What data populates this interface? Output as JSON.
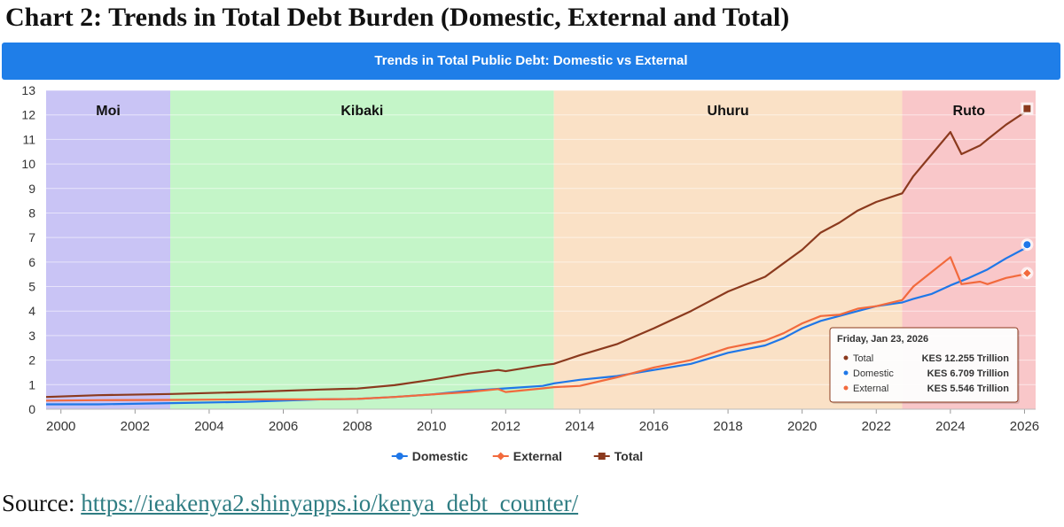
{
  "doc_title": "Chart 2: Trends in Total Debt Burden (Domestic, External and Total)",
  "source": {
    "prefix": "Source: ",
    "link_text": "https://ieakenya2.shinyapps.io/kenya_debt_counter/"
  },
  "chart_data": {
    "type": "line",
    "title": "Trends in Total Public Debt: Domestic vs External",
    "xlim": [
      1999.6,
      2026.3
    ],
    "ylim": [
      0,
      13
    ],
    "x_ticks": [
      "2000",
      "2002",
      "2004",
      "2006",
      "2008",
      "2010",
      "2012",
      "2014",
      "2016",
      "2018",
      "2020",
      "2022",
      "2024",
      "2026"
    ],
    "y_ticks": [
      "0",
      "1",
      "2",
      "3",
      "4",
      "5",
      "6",
      "7",
      "8",
      "9",
      "10",
      "11",
      "12",
      "13"
    ],
    "grid": true,
    "legend_position": "bottom-center",
    "bands": [
      {
        "label": "Moi",
        "from": 1999.6,
        "to": 2002.95,
        "color": "#c9c4f5"
      },
      {
        "label": "Kibaki",
        "from": 2002.95,
        "to": 2013.3,
        "color": "#c4f5c8"
      },
      {
        "label": "Uhuru",
        "from": 2013.3,
        "to": 2022.7,
        "color": "#fae1c6"
      },
      {
        "label": "Ruto",
        "from": 2022.7,
        "to": 2026.3,
        "color": "#f9c7c9"
      }
    ],
    "series": [
      {
        "name": "Domestic",
        "color": "#1f77e8",
        "marker": "circle",
        "points": [
          [
            1999.6,
            0.2
          ],
          [
            2001,
            0.2
          ],
          [
            2003,
            0.25
          ],
          [
            2005,
            0.3
          ],
          [
            2007,
            0.4
          ],
          [
            2008,
            0.42
          ],
          [
            2009,
            0.5
          ],
          [
            2010,
            0.6
          ],
          [
            2011,
            0.75
          ],
          [
            2012,
            0.85
          ],
          [
            2013,
            0.95
          ],
          [
            2013.3,
            1.05
          ],
          [
            2014,
            1.2
          ],
          [
            2015,
            1.35
          ],
          [
            2016,
            1.6
          ],
          [
            2017,
            1.85
          ],
          [
            2018,
            2.3
          ],
          [
            2019,
            2.6
          ],
          [
            2019.5,
            2.9
          ],
          [
            2020,
            3.3
          ],
          [
            2020.5,
            3.6
          ],
          [
            2021,
            3.8
          ],
          [
            2021.5,
            4.0
          ],
          [
            2022,
            4.2
          ],
          [
            2022.7,
            4.35
          ],
          [
            2023,
            4.5
          ],
          [
            2023.5,
            4.7
          ],
          [
            2024,
            5.05
          ],
          [
            2024.5,
            5.35
          ],
          [
            2025,
            5.7
          ],
          [
            2025.5,
            6.15
          ],
          [
            2026,
            6.55
          ],
          [
            2026.07,
            6.709
          ]
        ]
      },
      {
        "name": "External",
        "color": "#f26a3d",
        "marker": "diamond",
        "points": [
          [
            1999.6,
            0.35
          ],
          [
            2001,
            0.37
          ],
          [
            2003,
            0.38
          ],
          [
            2005,
            0.4
          ],
          [
            2007,
            0.4
          ],
          [
            2008,
            0.42
          ],
          [
            2009,
            0.5
          ],
          [
            2010,
            0.6
          ],
          [
            2011,
            0.7
          ],
          [
            2011.8,
            0.82
          ],
          [
            2012,
            0.7
          ],
          [
            2013,
            0.85
          ],
          [
            2013.3,
            0.9
          ],
          [
            2014,
            0.95
          ],
          [
            2015,
            1.3
          ],
          [
            2016,
            1.7
          ],
          [
            2017,
            2.0
          ],
          [
            2018,
            2.5
          ],
          [
            2019,
            2.8
          ],
          [
            2019.5,
            3.1
          ],
          [
            2020,
            3.5
          ],
          [
            2020.5,
            3.8
          ],
          [
            2021,
            3.85
          ],
          [
            2021.5,
            4.1
          ],
          [
            2022,
            4.2
          ],
          [
            2022.7,
            4.45
          ],
          [
            2023,
            5.0
          ],
          [
            2023.5,
            5.6
          ],
          [
            2024,
            6.2
          ],
          [
            2024.3,
            5.1
          ],
          [
            2024.8,
            5.2
          ],
          [
            2025,
            5.1
          ],
          [
            2025.5,
            5.35
          ],
          [
            2026,
            5.5
          ],
          [
            2026.07,
            5.546
          ]
        ]
      },
      {
        "name": "Total",
        "color": "#8b3a1e",
        "marker": "square",
        "points": [
          [
            1999.6,
            0.5
          ],
          [
            2001,
            0.57
          ],
          [
            2003,
            0.62
          ],
          [
            2005,
            0.7
          ],
          [
            2007,
            0.8
          ],
          [
            2008,
            0.84
          ],
          [
            2009,
            0.98
          ],
          [
            2010,
            1.2
          ],
          [
            2011,
            1.45
          ],
          [
            2011.8,
            1.6
          ],
          [
            2012,
            1.55
          ],
          [
            2013,
            1.8
          ],
          [
            2013.3,
            1.85
          ],
          [
            2014,
            2.2
          ],
          [
            2015,
            2.65
          ],
          [
            2016,
            3.3
          ],
          [
            2017,
            4.0
          ],
          [
            2018,
            4.8
          ],
          [
            2019,
            5.4
          ],
          [
            2019.5,
            5.95
          ],
          [
            2020,
            6.5
          ],
          [
            2020.5,
            7.2
          ],
          [
            2021,
            7.6
          ],
          [
            2021.5,
            8.1
          ],
          [
            2022,
            8.45
          ],
          [
            2022.7,
            8.8
          ],
          [
            2023,
            9.5
          ],
          [
            2023.5,
            10.4
          ],
          [
            2024,
            11.3
          ],
          [
            2024.3,
            10.4
          ],
          [
            2024.8,
            10.75
          ],
          [
            2025,
            11.0
          ],
          [
            2025.5,
            11.6
          ],
          [
            2026,
            12.1
          ],
          [
            2026.07,
            12.255
          ]
        ]
      }
    ],
    "tooltip": {
      "date": "Friday, Jan 23, 2026",
      "rows": [
        {
          "name": "Total",
          "value": "KES 12.255 Trillion",
          "color": "#8b3a1e"
        },
        {
          "name": "Domestic",
          "value": "KES 6.709 Trillion",
          "color": "#1f77e8"
        },
        {
          "name": "External",
          "value": "KES 5.546 Trillion",
          "color": "#f26a3d"
        }
      ]
    }
  }
}
